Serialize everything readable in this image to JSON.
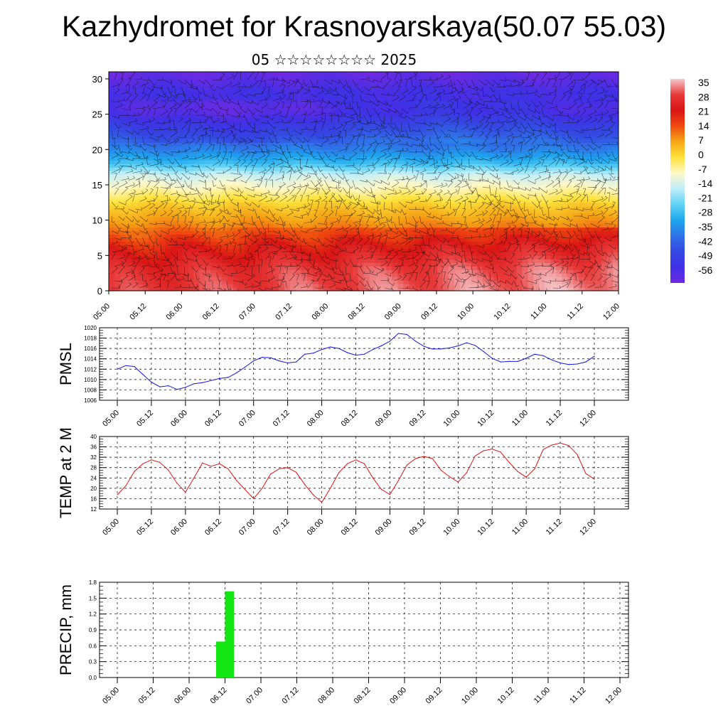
{
  "header": {
    "title": "Kazhydromet for Krasnoyarskaya(50.07 55.03)",
    "subtitle": "05 ☆☆☆☆☆☆☆☆ 2025"
  },
  "chart_data": [
    {
      "type": "heatmap",
      "name": "Temperature cross-section with wind",
      "x_ticks": [
        "05.00",
        "05.12",
        "06.00",
        "06.12",
        "07.00",
        "07.12",
        "08.00",
        "08.12",
        "09.00",
        "09.12",
        "10.00",
        "10.12",
        "11.00",
        "11.12",
        "12.00"
      ],
      "y_ticks": [
        "0",
        "5",
        "10",
        "15",
        "20",
        "25",
        "30"
      ],
      "ylim": [
        0,
        31
      ],
      "colorbar_labels": [
        "35",
        "28",
        "21",
        "14",
        "7",
        "0",
        "-7",
        "-14",
        "-21",
        "-28",
        "-35",
        "-42",
        "-49",
        "-56"
      ],
      "colorbar_stops": [
        {
          "value": 35,
          "color": "#f6c8cc"
        },
        {
          "value": 28,
          "color": "#e83a3a"
        },
        {
          "value": 21,
          "color": "#d91414"
        },
        {
          "value": 14,
          "color": "#f04a10"
        },
        {
          "value": 7,
          "color": "#f5a516"
        },
        {
          "value": 0,
          "color": "#fde23a"
        },
        {
          "value": -7,
          "color": "#fff8c8"
        },
        {
          "value": -14,
          "color": "#bfeefa"
        },
        {
          "value": -21,
          "color": "#5fd3f4"
        },
        {
          "value": -28,
          "color": "#1ea6ee"
        },
        {
          "value": -35,
          "color": "#2f73e8"
        },
        {
          "value": -42,
          "color": "#3448e2"
        },
        {
          "value": -49,
          "color": "#4030e6"
        },
        {
          "value": -56,
          "color": "#6e2ae2"
        }
      ],
      "profile": [
        {
          "h": 0,
          "t": 27
        },
        {
          "h": 3,
          "t": 25
        },
        {
          "h": 6,
          "t": 19
        },
        {
          "h": 9,
          "t": 10
        },
        {
          "h": 12,
          "t": 3
        },
        {
          "h": 14.5,
          "t": -6
        },
        {
          "h": 16.5,
          "t": -13
        },
        {
          "h": 18,
          "t": -24
        },
        {
          "h": 20,
          "t": -33
        },
        {
          "h": 22,
          "t": -40
        },
        {
          "h": 24,
          "t": -46
        },
        {
          "h": 25.5,
          "t": -51
        },
        {
          "h": 28,
          "t": -49
        },
        {
          "h": 31,
          "t": -55
        }
      ]
    },
    {
      "type": "line",
      "ylabel": "PMSL",
      "x_ticks": [
        "05.00",
        "05.12",
        "06.00",
        "06.12",
        "07.00",
        "07.12",
        "08.00",
        "08.12",
        "09.00",
        "09.12",
        "10.00",
        "10.12",
        "11.00",
        "11.12",
        "12.00"
      ],
      "ylim": [
        1006,
        1020
      ],
      "y_ticks": [
        "1006",
        "1008",
        "1010",
        "1012",
        "1014",
        "1016",
        "1018",
        "1020"
      ],
      "color": "#1414e6",
      "series": [
        {
          "x": [
            0,
            3,
            6,
            9,
            12,
            15,
            18,
            21,
            24,
            27,
            30,
            33,
            36,
            39,
            42,
            45,
            48,
            51,
            54,
            57,
            60,
            63,
            66,
            69,
            72,
            75,
            78,
            81,
            84,
            87,
            90,
            93,
            96,
            99,
            102,
            105,
            108,
            111,
            114,
            117,
            120,
            123,
            126,
            129,
            132,
            135,
            138,
            141,
            144,
            147,
            150,
            153,
            156,
            159,
            162,
            165,
            168
          ],
          "values": [
            1012,
            1012.7,
            1012.5,
            1011,
            1009.5,
            1008.6,
            1008.8,
            1008.1,
            1008.5,
            1009.2,
            1009.4,
            1009.8,
            1010.2,
            1010.4,
            1011.3,
            1012.4,
            1013.6,
            1014.3,
            1014.2,
            1013.6,
            1013.2,
            1013.4,
            1014.9,
            1015.1,
            1015.8,
            1016.3,
            1016,
            1015.2,
            1014.7,
            1014.9,
            1015.8,
            1016.5,
            1017.4,
            1018.9,
            1018.7,
            1017.4,
            1016.4,
            1015.9,
            1015.9,
            1016.1,
            1016.5,
            1017.1,
            1016.6,
            1015.4,
            1014.1,
            1013.4,
            1013.5,
            1013.5,
            1014.1,
            1014.9,
            1014.6,
            1013.8,
            1013.2,
            1012.9,
            1013,
            1013.4,
            1014.5
          ]
        }
      ]
    },
    {
      "type": "line",
      "ylabel": "TEMP at 2 M",
      "x_ticks": [
        "05.00",
        "05.12",
        "06.00",
        "06.12",
        "07.00",
        "07.12",
        "08.00",
        "08.12",
        "09.00",
        "09.12",
        "10.00",
        "10.12",
        "11.00",
        "11.12",
        "12.00"
      ],
      "ylim": [
        12,
        40
      ],
      "y_ticks": [
        "12",
        "16",
        "20",
        "24",
        "28",
        "32",
        "36",
        "40"
      ],
      "color": "#e61414",
      "series": [
        {
          "x": [
            0,
            3,
            6,
            9,
            12,
            15,
            18,
            21,
            24,
            27,
            30,
            33,
            36,
            39,
            42,
            45,
            48,
            51,
            54,
            57,
            60,
            63,
            66,
            69,
            72,
            75,
            78,
            81,
            84,
            87,
            90,
            93,
            96,
            99,
            102,
            105,
            108,
            111,
            114,
            117,
            120,
            123,
            126,
            129,
            132,
            135,
            138,
            141,
            144,
            147,
            150,
            153,
            156,
            159,
            162,
            165,
            168
          ],
          "values": [
            17.5,
            21,
            26.5,
            29.5,
            31,
            30,
            27,
            22,
            18.5,
            24,
            29.8,
            28.5,
            29.5,
            27.5,
            23,
            19.5,
            16,
            20,
            25.5,
            27.5,
            28,
            26.2,
            21.5,
            17.5,
            14.6,
            20,
            26,
            29.5,
            31,
            29.5,
            24,
            19.6,
            17.6,
            23,
            29,
            31.5,
            32.3,
            31.5,
            27,
            24.5,
            22.4,
            26,
            32.5,
            34.5,
            35.2,
            34,
            30,
            26.5,
            24.3,
            27.5,
            35,
            36.7,
            37.5,
            36.5,
            33,
            25.7,
            23.5
          ]
        }
      ]
    },
    {
      "type": "bar",
      "ylabel": "PRECIP, mm",
      "x_ticks": [
        "05.00",
        "05.12",
        "06.00",
        "06.12",
        "07.00",
        "07.12",
        "08.00",
        "08.12",
        "09.00",
        "09.12",
        "10.00",
        "10.12",
        "11.00",
        "11.12",
        "12.00"
      ],
      "ylim": [
        0,
        1.8
      ],
      "y_ticks": [
        "0.0",
        "0.3",
        "0.6",
        "0.9",
        "1.2",
        "1.5",
        "1.8"
      ],
      "color": "#14e614",
      "series": [
        {
          "x_start": [
            33,
            36
          ],
          "x_end": [
            36,
            39
          ],
          "values": [
            0.68,
            1.63
          ]
        }
      ]
    }
  ]
}
